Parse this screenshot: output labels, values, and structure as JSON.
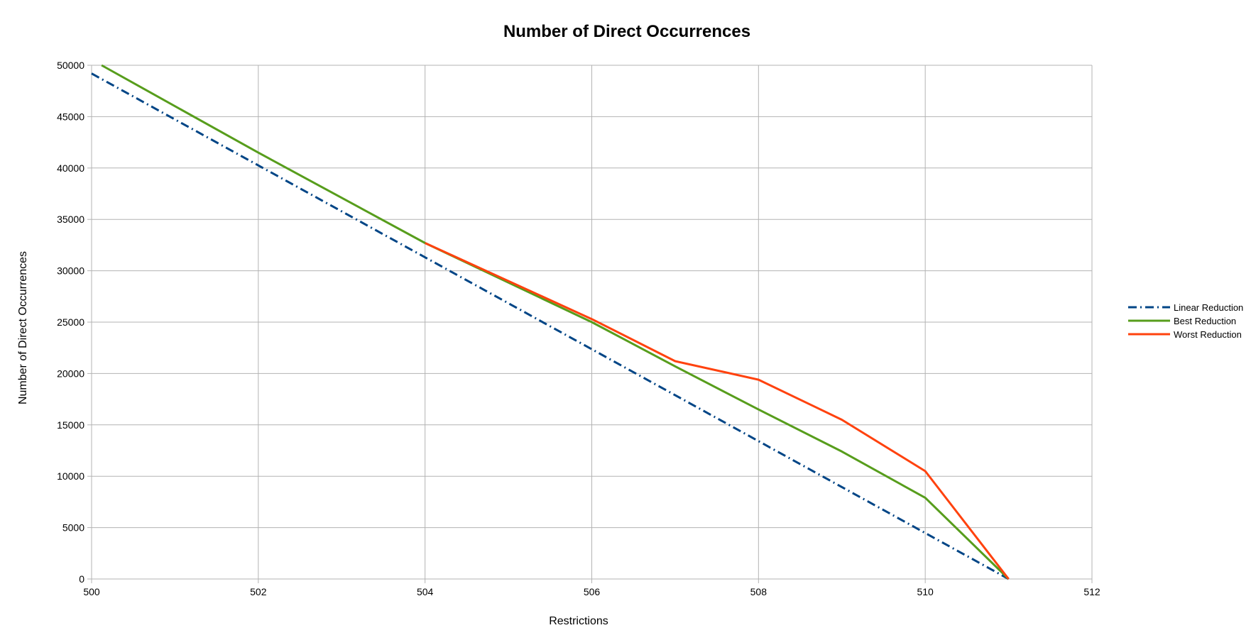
{
  "chart_data": {
    "type": "line",
    "title": "Number of Direct Occurrences",
    "xlabel": "Restrictions",
    "ylabel": "Number of Direct Occurrences",
    "xlim": [
      500,
      512
    ],
    "ylim": [
      0,
      50000
    ],
    "xticks": [
      500,
      502,
      504,
      506,
      508,
      510,
      512
    ],
    "yticks": [
      0,
      5000,
      10000,
      15000,
      20000,
      25000,
      30000,
      35000,
      40000,
      45000,
      50000
    ],
    "grid": true,
    "legend_position": "right",
    "series": [
      {
        "name": "Linear Reduction",
        "color": "#004586",
        "style": "dash-dot",
        "x": [
          500,
          511
        ],
        "y": [
          49200,
          0
        ]
      },
      {
        "name": "Best Reduction",
        "color": "#579d1c",
        "style": "solid",
        "x": [
          500.12,
          502,
          504,
          506,
          507,
          508,
          509,
          510,
          511
        ],
        "y": [
          50000,
          41500,
          32700,
          25000,
          20700,
          16500,
          12400,
          7900,
          0
        ]
      },
      {
        "name": "Worst Reduction",
        "color": "#ff420e",
        "style": "solid",
        "x": [
          504,
          506,
          507,
          508,
          509,
          510,
          511
        ],
        "y": [
          32700,
          25300,
          21200,
          19400,
          15500,
          10500,
          0
        ]
      }
    ]
  }
}
